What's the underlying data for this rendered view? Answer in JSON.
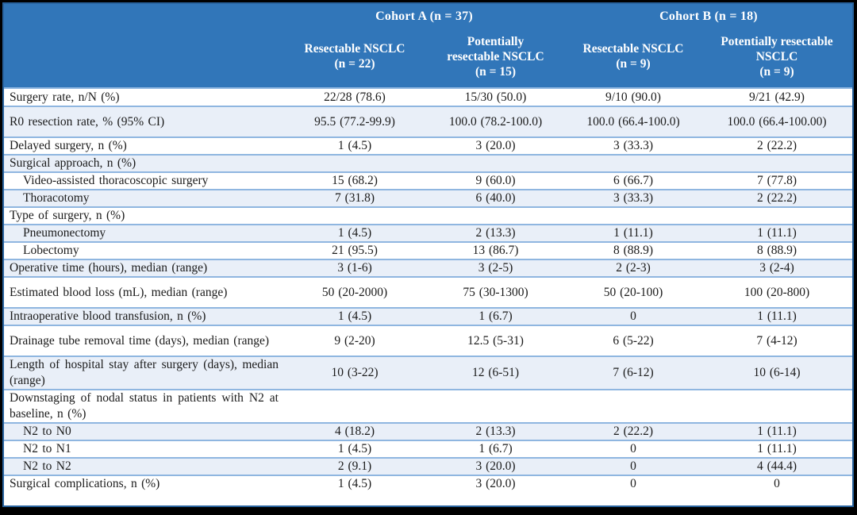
{
  "colors": {
    "frame": "#000000",
    "header_bg": "#3176B9",
    "outer_border": "#28639E",
    "row_separator": "#8FB6E0",
    "row_alt_bg": "#E9EFF8",
    "row_bg": "#FFFFFF",
    "header_text": "#FFFFFF",
    "body_text": "#1B1B1B"
  },
  "header": {
    "groups": [
      {
        "label": "Cohort A (n = 37)",
        "span": 2
      },
      {
        "label": "Cohort B (n = 18)",
        "span": 2
      }
    ],
    "columns": [
      {
        "lines": [
          "Resectable NSCLC"
        ],
        "n": "(n = 22)"
      },
      {
        "lines": [
          "Potentially",
          "resectable NSCLC"
        ],
        "n": "(n = 15)"
      },
      {
        "lines": [
          "Resectable NSCLC"
        ],
        "n": "(n = 9)"
      },
      {
        "lines": [
          "Potentially resectable",
          "NSCLC"
        ],
        "n": "(n = 9)"
      }
    ]
  },
  "rows": [
    {
      "label": "Surgery rate, n/N (%)",
      "indent": false,
      "tall": false,
      "values": [
        "22/28 (78.6)",
        "15/30 (50.0)",
        "9/10 (90.0)",
        "9/21 (42.9)"
      ]
    },
    {
      "label": "R0 resection rate, % (95% CI)",
      "indent": false,
      "tall": true,
      "values": [
        "95.5 (77.2-99.9)",
        "100.0 (78.2-100.0)",
        "100.0 (66.4-100.0)",
        "100.0 (66.4-100.00)"
      ]
    },
    {
      "label": "Delayed surgery, n (%)",
      "indent": false,
      "tall": false,
      "values": [
        "1 (4.5)",
        "3 (20.0)",
        "3 (33.3)",
        "2 (22.2)"
      ]
    },
    {
      "label": "Surgical approach, n (%)",
      "indent": false,
      "tall": false,
      "values": [
        "",
        "",
        "",
        ""
      ]
    },
    {
      "label": "Video-assisted thoracoscopic surgery",
      "indent": true,
      "tall": false,
      "values": [
        "15 (68.2)",
        "9 (60.0)",
        "6 (66.7)",
        "7 (77.8)"
      ]
    },
    {
      "label": "Thoracotomy",
      "indent": true,
      "tall": false,
      "values": [
        "7 (31.8)",
        "6 (40.0)",
        "3 (33.3)",
        "2 (22.2)"
      ]
    },
    {
      "label": "Type of surgery, n (%)",
      "indent": false,
      "tall": false,
      "values": [
        "",
        "",
        "",
        ""
      ]
    },
    {
      "label": "Pneumonectomy",
      "indent": true,
      "tall": false,
      "values": [
        "1 (4.5)",
        "2 (13.3)",
        "1 (11.1)",
        "1 (11.1)"
      ]
    },
    {
      "label": "Lobectomy",
      "indent": true,
      "tall": false,
      "values": [
        "21 (95.5)",
        "13 (86.7)",
        "8 (88.9)",
        "8 (88.9)"
      ]
    },
    {
      "label": "Operative time (hours), median (range)",
      "indent": false,
      "tall": false,
      "values": [
        "3 (1-6)",
        "3 (2-5)",
        "2 (2-3)",
        "3 (2-4)"
      ]
    },
    {
      "label": "Estimated blood loss (mL), median (range)",
      "indent": false,
      "tall": true,
      "values": [
        "50 (20-2000)",
        "75 (30-1300)",
        "50 (20-100)",
        "100 (20-800)"
      ]
    },
    {
      "label": "Intraoperative blood transfusion, n (%)",
      "indent": false,
      "tall": false,
      "values": [
        "1 (4.5)",
        "1 (6.7)",
        "0",
        "1 (11.1)"
      ]
    },
    {
      "label": "Drainage tube removal time (days), median (range)",
      "indent": false,
      "tall": true,
      "values": [
        "9 (2-20)",
        "12.5 (5-31)",
        "6 (5-22)",
        "7 (4-12)"
      ]
    },
    {
      "label": "Length of hospital stay after surgery (days), median (range)",
      "indent": false,
      "tall": true,
      "values": [
        "10 (3-22)",
        "12 (6-51)",
        "7 (6-12)",
        "10 (6-14)"
      ]
    },
    {
      "label": "Downstaging of nodal status in patients with N2 at baseline, n (%)",
      "indent": false,
      "tall": true,
      "values": [
        "",
        "",
        "",
        ""
      ]
    },
    {
      "label": "N2 to N0",
      "indent": true,
      "tall": false,
      "values": [
        "4 (18.2)",
        "2 (13.3)",
        "2 (22.2)",
        "1 (11.1)"
      ]
    },
    {
      "label": "N2 to N1",
      "indent": true,
      "tall": false,
      "values": [
        "1 (4.5)",
        "1 (6.7)",
        "0",
        "1 (11.1)"
      ]
    },
    {
      "label": "N2 to N2",
      "indent": true,
      "tall": false,
      "values": [
        "2 (9.1)",
        "3 (20.0)",
        "0",
        "4 (44.4)"
      ]
    },
    {
      "label": "Surgical complications, n (%)",
      "indent": false,
      "tall": false,
      "values": [
        "1 (4.5)",
        "3 (20.0)",
        "0",
        "0"
      ]
    }
  ]
}
